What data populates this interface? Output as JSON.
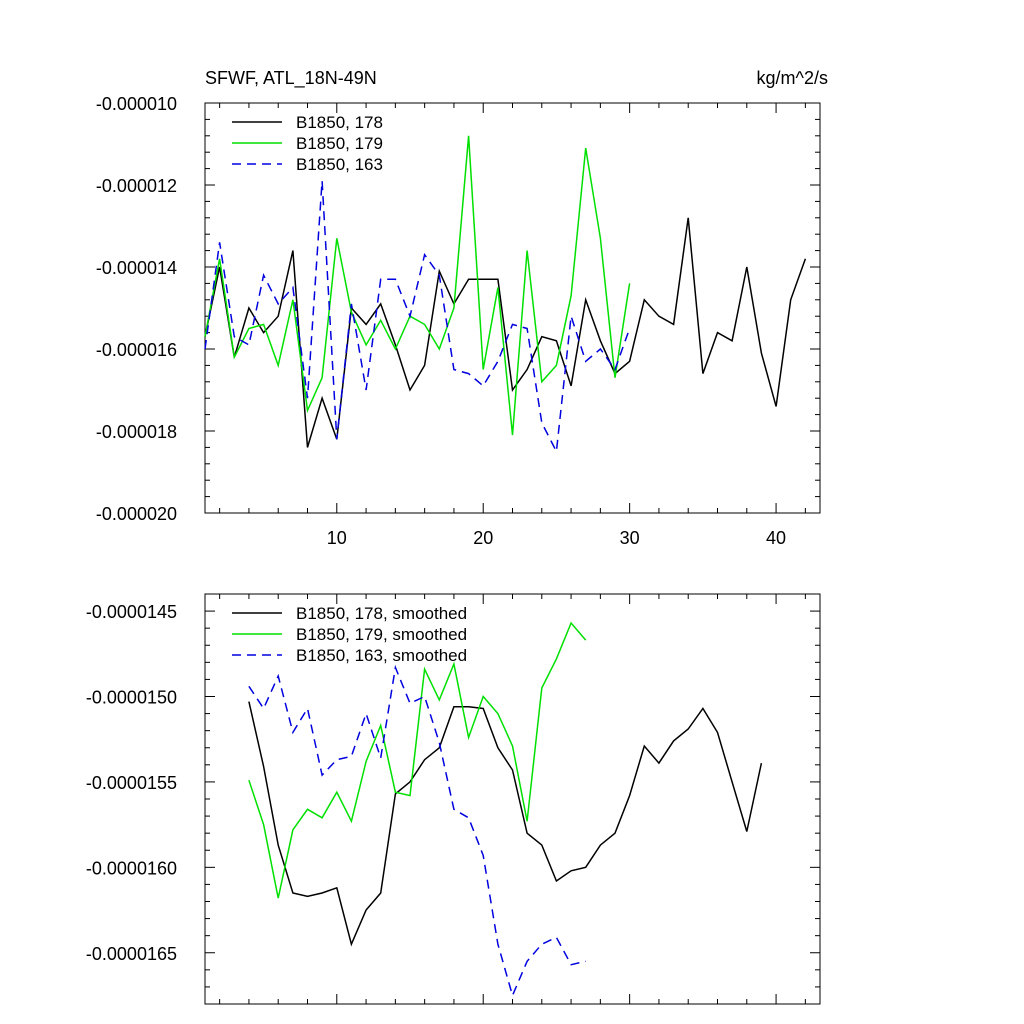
{
  "chart_data": [
    {
      "type": "line",
      "title": "SFWF, ATL_18N-49N",
      "units": "kg/m^2/s",
      "xlim": [
        1,
        43
      ],
      "ylim": [
        -2e-05,
        -1e-05
      ],
      "xticks": [
        10,
        20,
        30,
        40
      ],
      "xtick_labels": [
        "10",
        "20",
        "30",
        "40"
      ],
      "yticks": [
        -1e-05,
        -1.2e-05,
        -1.4e-05,
        -1.6e-05,
        -1.8e-05,
        -2e-05
      ],
      "ytick_labels": [
        "-0.000010",
        "-0.000012",
        "-0.000014",
        "-0.000016",
        "-0.000018",
        "-0.000020"
      ],
      "legend_position": "top-left",
      "series": [
        {
          "name": "B1850, 178",
          "color": "#000000",
          "dash": "solid",
          "x": [
            1,
            2,
            3,
            4,
            5,
            6,
            7,
            8,
            9,
            10,
            11,
            12,
            13,
            14,
            15,
            16,
            17,
            18,
            19,
            20,
            21,
            22,
            23,
            24,
            25,
            26,
            27,
            28,
            29,
            30,
            31,
            32,
            33,
            34,
            35,
            36,
            37,
            38,
            39,
            40,
            41,
            42
          ],
          "y": [
            -1.57e-05,
            -1.4e-05,
            -1.62e-05,
            -1.5e-05,
            -1.56e-05,
            -1.52e-05,
            -1.36e-05,
            -1.84e-05,
            -1.72e-05,
            -1.82e-05,
            -1.5e-05,
            -1.54e-05,
            -1.49e-05,
            -1.59e-05,
            -1.7e-05,
            -1.64e-05,
            -1.41e-05,
            -1.49e-05,
            -1.43e-05,
            -1.43e-05,
            -1.43e-05,
            -1.7e-05,
            -1.65e-05,
            -1.57e-05,
            -1.58e-05,
            -1.69e-05,
            -1.48e-05,
            -1.58e-05,
            -1.66e-05,
            -1.63e-05,
            -1.48e-05,
            -1.52e-05,
            -1.54e-05,
            -1.28e-05,
            -1.66e-05,
            -1.56e-05,
            -1.58e-05,
            -1.4e-05,
            -1.61e-05,
            -1.74e-05,
            -1.48e-05,
            -1.38e-05
          ]
        },
        {
          "name": "B1850, 179",
          "color": "#00e000",
          "dash": "solid",
          "x": [
            1,
            2,
            3,
            4,
            5,
            6,
            7,
            8,
            9,
            10,
            11,
            12,
            13,
            14,
            15,
            16,
            17,
            18,
            19,
            20,
            21,
            22,
            23,
            24,
            25,
            26,
            27,
            28,
            29,
            30
          ],
          "y": [
            -1.57e-05,
            -1.38e-05,
            -1.62e-05,
            -1.55e-05,
            -1.54e-05,
            -1.64e-05,
            -1.48e-05,
            -1.75e-05,
            -1.67e-05,
            -1.33e-05,
            -1.51e-05,
            -1.59e-05,
            -1.53e-05,
            -1.6e-05,
            -1.52e-05,
            -1.54e-05,
            -1.6e-05,
            -1.5e-05,
            -1.08e-05,
            -1.65e-05,
            -1.45e-05,
            -1.81e-05,
            -1.36e-05,
            -1.68e-05,
            -1.64e-05,
            -1.47e-05,
            -1.11e-05,
            -1.33e-05,
            -1.67e-05,
            -1.44e-05
          ]
        },
        {
          "name": "B1850, 163",
          "color": "#0000e0",
          "dash": "dashed",
          "x": [
            1,
            2,
            3,
            4,
            5,
            6,
            7,
            8,
            9,
            10,
            11,
            12,
            13,
            14,
            15,
            16,
            17,
            18,
            19,
            20,
            21,
            22,
            23,
            24,
            25,
            26,
            27,
            28,
            29,
            30
          ],
          "y": [
            -1.6e-05,
            -1.34e-05,
            -1.57e-05,
            -1.59e-05,
            -1.42e-05,
            -1.49e-05,
            -1.45e-05,
            -1.72e-05,
            -1.19e-05,
            -1.82e-05,
            -1.49e-05,
            -1.7e-05,
            -1.43e-05,
            -1.43e-05,
            -1.52e-05,
            -1.37e-05,
            -1.42e-05,
            -1.65e-05,
            -1.66e-05,
            -1.69e-05,
            -1.63e-05,
            -1.54e-05,
            -1.55e-05,
            -1.78e-05,
            -1.85e-05,
            -1.52e-05,
            -1.63e-05,
            -1.6e-05,
            -1.65e-05,
            -1.55e-05
          ]
        }
      ]
    },
    {
      "type": "line",
      "title": "",
      "xlim": [
        1,
        43
      ],
      "ylim": [
        -1.68e-05,
        -1.44e-05
      ],
      "xticks": [
        10,
        20,
        30,
        40
      ],
      "xtick_labels": [
        "",
        "",
        "",
        ""
      ],
      "yticks": [
        -1.45e-05,
        -1.5e-05,
        -1.55e-05,
        -1.6e-05,
        -1.65e-05
      ],
      "ytick_labels": [
        "-0.0000145",
        "-0.0000150",
        "-0.0000155",
        "-0.0000160",
        "-0.0000165"
      ],
      "legend_position": "top-left",
      "series": [
        {
          "name": "B1850, 178, smoothed",
          "color": "#000000",
          "dash": "solid",
          "x": [
            4,
            5,
            6,
            7,
            8,
            9,
            10,
            11,
            12,
            13,
            14,
            15,
            16,
            17,
            18,
            19,
            20,
            21,
            22,
            23,
            24,
            25,
            26,
            27,
            28,
            29,
            30,
            31,
            32,
            33,
            34,
            35,
            36,
            37,
            38,
            39
          ],
          "y": [
            -1.503e-05,
            -1.541e-05,
            -1.587e-05,
            -1.615e-05,
            -1.617e-05,
            -1.615e-05,
            -1.612e-05,
            -1.645e-05,
            -1.625e-05,
            -1.615e-05,
            -1.557e-05,
            -1.55e-05,
            -1.537e-05,
            -1.53e-05,
            -1.506e-05,
            -1.506e-05,
            -1.507e-05,
            -1.53e-05,
            -1.543e-05,
            -1.58e-05,
            -1.587e-05,
            -1.608e-05,
            -1.602e-05,
            -1.6e-05,
            -1.587e-05,
            -1.58e-05,
            -1.558e-05,
            -1.529e-05,
            -1.539e-05,
            -1.526e-05,
            -1.519e-05,
            -1.507e-05,
            -1.521e-05,
            -1.55e-05,
            -1.579e-05,
            -1.539e-05
          ]
        },
        {
          "name": "B1850, 179, smoothed",
          "color": "#00e000",
          "dash": "solid",
          "x": [
            4,
            5,
            6,
            7,
            8,
            9,
            10,
            11,
            12,
            13,
            14,
            15,
            16,
            17,
            18,
            19,
            20,
            21,
            22,
            23,
            24,
            25,
            26,
            27
          ],
          "y": [
            -1.549e-05,
            -1.575e-05,
            -1.618e-05,
            -1.578e-05,
            -1.566e-05,
            -1.571e-05,
            -1.556e-05,
            -1.573e-05,
            -1.538e-05,
            -1.517e-05,
            -1.556e-05,
            -1.558e-05,
            -1.484e-05,
            -1.502e-05,
            -1.481e-05,
            -1.524e-05,
            -1.5e-05,
            -1.51e-05,
            -1.529e-05,
            -1.573e-05,
            -1.495e-05,
            -1.478e-05,
            -1.457e-05,
            -1.467e-05
          ]
        },
        {
          "name": "B1850, 163, smoothed",
          "color": "#0000e0",
          "dash": "dashed",
          "x": [
            4,
            5,
            6,
            7,
            8,
            9,
            10,
            11,
            12,
            13,
            14,
            15,
            16,
            17,
            18,
            19,
            20,
            21,
            22,
            23,
            24,
            25,
            26,
            27
          ],
          "y": [
            -1.494e-05,
            -1.507e-05,
            -1.488e-05,
            -1.521e-05,
            -1.507e-05,
            -1.546e-05,
            -1.537e-05,
            -1.535e-05,
            -1.51e-05,
            -1.536e-05,
            -1.483e-05,
            -1.504e-05,
            -1.5e-05,
            -1.527e-05,
            -1.566e-05,
            -1.571e-05,
            -1.593e-05,
            -1.645e-05,
            -1.675e-05,
            -1.655e-05,
            -1.645e-05,
            -1.641e-05,
            -1.657e-05,
            -1.655e-05
          ]
        }
      ]
    }
  ]
}
